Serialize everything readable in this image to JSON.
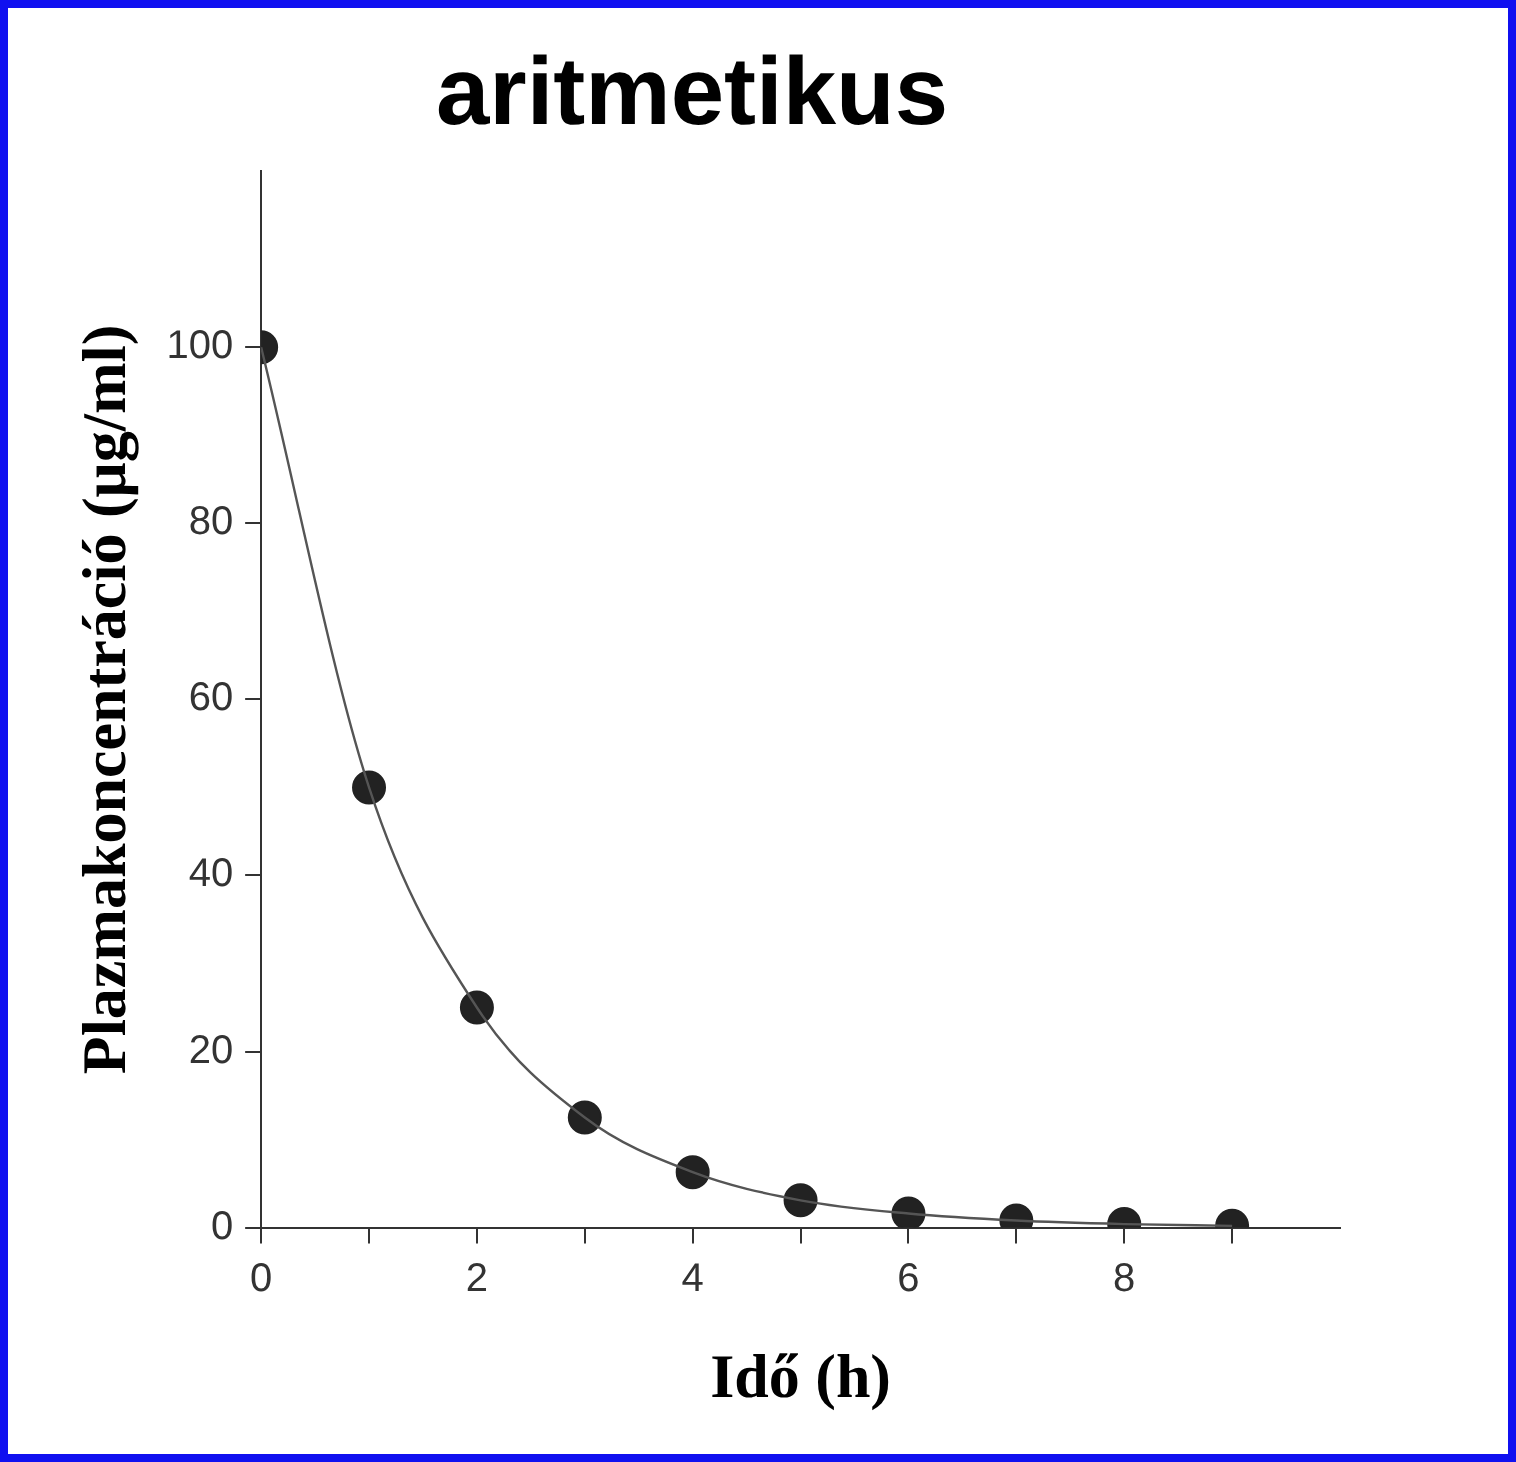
{
  "chart_data": {
    "type": "scatter",
    "title": "aritmetikus",
    "xlabel": "Idő (h)",
    "ylabel": "Plazmakoncentráció (μg/ml)",
    "x": [
      0,
      1,
      2,
      3,
      4,
      5,
      6,
      7,
      8,
      9
    ],
    "series": [
      {
        "type": "line",
        "color": "#555555",
        "values": [
          100,
          50,
          25,
          12.5,
          6.3,
          3.1,
          1.6,
          0.8,
          0.4,
          0.2
        ],
        "marker": "none"
      },
      {
        "color": "#222222",
        "values": [
          100,
          50,
          25,
          12.5,
          6.3,
          3.1,
          1.6,
          0.8,
          0.4,
          0.2
        ],
        "marker": "circle"
      }
    ],
    "xlim": [
      0,
      10
    ],
    "xticks": [
      0,
      {
        "value": 1,
        "label": null
      },
      2,
      {
        "value": 3,
        "label": null
      },
      4,
      {
        "value": 5,
        "label": null
      },
      6,
      {
        "value": 7,
        "label": null
      },
      8,
      {
        "value": 9,
        "label": null
      }
    ],
    "ylim": [
      0,
      120
    ],
    "yticks": [
      0,
      20,
      40,
      60,
      80,
      100
    ],
    "grid": false,
    "legend": false
  }
}
